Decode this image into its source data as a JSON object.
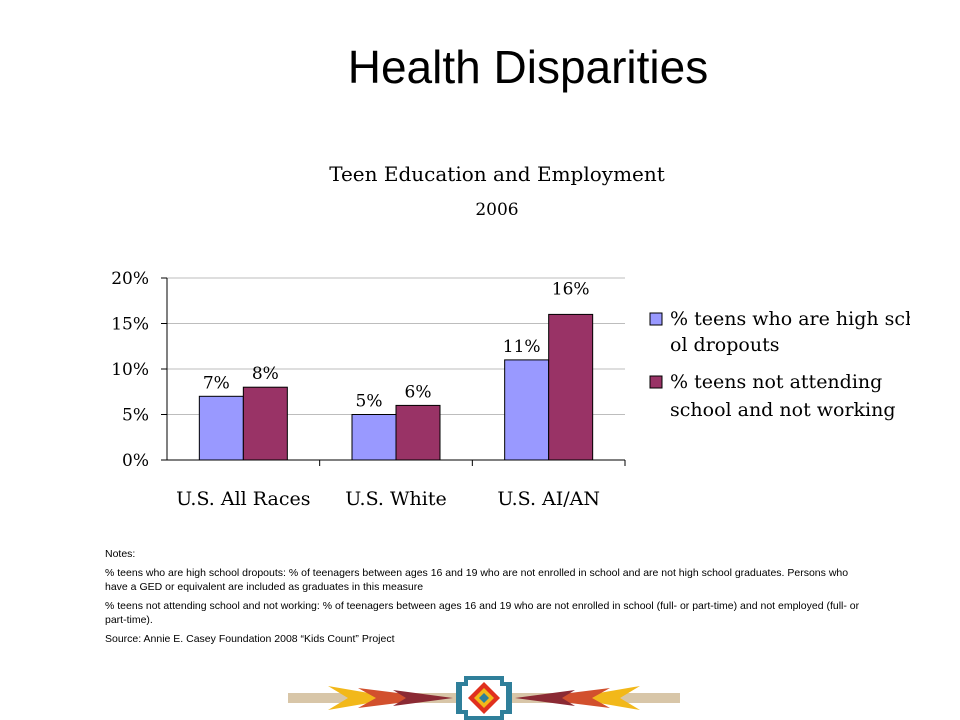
{
  "slide": {
    "title": "Health Disparities"
  },
  "chart_data": {
    "type": "bar",
    "title": "Teen Education and Employment",
    "subtitle": "2006",
    "categories": [
      "U.S. All Races",
      "U.S. White",
      "U.S. AI/AN"
    ],
    "series": [
      {
        "name": "% teens who are high school dropouts",
        "values": [
          7,
          5,
          11
        ],
        "labels": [
          "7%",
          "5%",
          "11%"
        ],
        "color": "#9999ff"
      },
      {
        "name": "% teens not attending school and not working",
        "values": [
          8,
          6,
          16
        ],
        "labels": [
          "8%",
          "6%",
          "16%"
        ],
        "color": "#993366"
      }
    ],
    "yticks": [
      "0%",
      "5%",
      "10%",
      "15%",
      "20%"
    ],
    "ylim": [
      0,
      20
    ],
    "grid": true,
    "legend_position": "right"
  },
  "notes": {
    "heading": "Notes:",
    "dropouts": "% teens who are high school dropouts: % of teenagers between ages 16 and 19 who are not enrolled in school and are not high school graduates. Persons who have a GED or equivalent are included as graduates in this measure",
    "not_working": "% teens not attending school and not working: % of teenagers between ages 16 and 19 who are not enrolled in school (full- or part-time) and not employed (full- or part-time).",
    "source": "Source: Annie E. Casey Foundation 2008 “Kids Count” Project"
  },
  "footer": {
    "decoration": "native-pattern-band"
  }
}
